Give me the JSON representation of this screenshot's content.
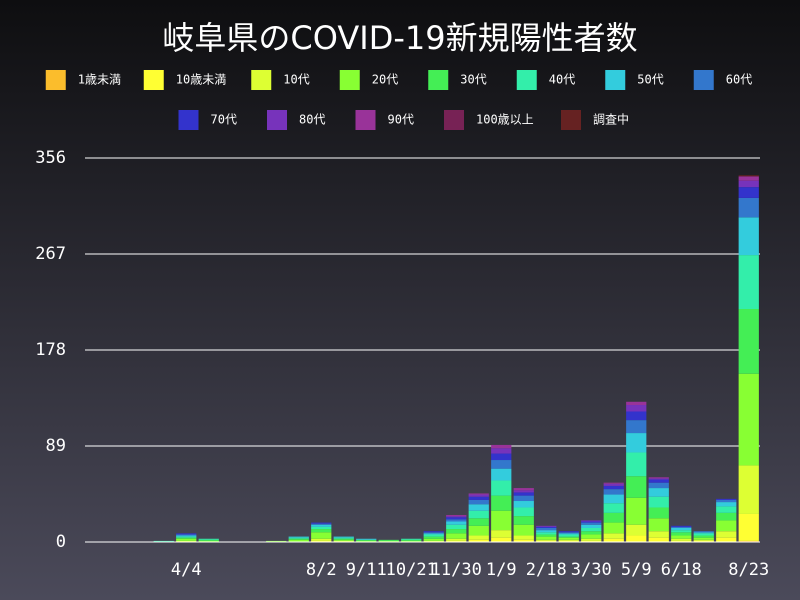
{
  "chart_data": {
    "type": "stacked-bar",
    "title": "岐阜県のCOVID-19新規陽性者数",
    "categories": [
      null,
      null,
      null,
      null,
      "4/4",
      null,
      null,
      null,
      null,
      null,
      "8/2",
      null,
      "9/11",
      null,
      "10/21",
      null,
      "11/30",
      null,
      "1/9",
      null,
      "2/18",
      null,
      "3/30",
      null,
      "5/9",
      null,
      "6/18",
      null,
      null,
      "8/23"
    ],
    "ylim": [
      0,
      356
    ],
    "yticks": [
      0,
      89,
      178,
      267,
      356
    ],
    "grid": true,
    "series": [
      {
        "name": "1歳未満",
        "color": "#fbbd2c",
        "values": [
          0,
          0,
          0,
          0,
          0,
          0,
          0,
          0,
          0,
          0,
          0,
          0,
          0,
          0,
          0,
          0,
          0,
          0,
          0,
          0,
          0,
          0,
          0,
          0,
          0,
          0,
          0,
          0,
          0,
          1
        ]
      },
      {
        "name": "10歳未満",
        "color": "#ffff33",
        "values": [
          0,
          0,
          0,
          0,
          0,
          0,
          0,
          0,
          0,
          0,
          1,
          0,
          0,
          0,
          0,
          0,
          1,
          2,
          4,
          2,
          1,
          1,
          1,
          3,
          6,
          4,
          1,
          1,
          4,
          25
        ]
      },
      {
        "name": "10代",
        "color": "#ddff33",
        "values": [
          0,
          0,
          0,
          0,
          1,
          0,
          0,
          0,
          0,
          0,
          2,
          1,
          0,
          0,
          0,
          1,
          2,
          4,
          7,
          4,
          1,
          1,
          2,
          5,
          10,
          6,
          2,
          1,
          6,
          45
        ]
      },
      {
        "name": "20代",
        "color": "#88ff33",
        "values": [
          0,
          0,
          0,
          0,
          2,
          1,
          0,
          0,
          1,
          2,
          6,
          1,
          1,
          1,
          1,
          2,
          5,
          9,
          18,
          10,
          3,
          2,
          4,
          10,
          25,
          12,
          3,
          2,
          10,
          85
        ]
      },
      {
        "name": "30代",
        "color": "#44ee55",
        "values": [
          0,
          0,
          0,
          0,
          1,
          1,
          0,
          0,
          0,
          1,
          3,
          1,
          1,
          1,
          1,
          2,
          4,
          7,
          14,
          8,
          2,
          1,
          3,
          9,
          20,
          10,
          3,
          2,
          7,
          60
        ]
      },
      {
        "name": "40代",
        "color": "#33eeaa",
        "values": [
          0,
          0,
          0,
          1,
          1,
          1,
          0,
          0,
          0,
          1,
          2,
          1,
          0,
          0,
          1,
          2,
          4,
          7,
          14,
          8,
          2,
          2,
          3,
          9,
          22,
          10,
          2,
          2,
          6,
          50
        ]
      },
      {
        "name": "50代",
        "color": "#33ccdd",
        "values": [
          0,
          0,
          0,
          0,
          1,
          0,
          0,
          0,
          0,
          1,
          2,
          1,
          1,
          0,
          0,
          1,
          3,
          6,
          11,
          6,
          2,
          1,
          3,
          8,
          18,
          8,
          2,
          1,
          4,
          35
        ]
      },
      {
        "name": "60代",
        "color": "#3377cc",
        "values": [
          0,
          0,
          0,
          0,
          1,
          0,
          0,
          0,
          0,
          0,
          1,
          0,
          0,
          0,
          0,
          1,
          2,
          4,
          8,
          5,
          2,
          1,
          2,
          5,
          12,
          5,
          1,
          1,
          2,
          18
        ]
      },
      {
        "name": "70代",
        "color": "#3333cc",
        "values": [
          0,
          0,
          0,
          0,
          1,
          0,
          0,
          0,
          0,
          0,
          1,
          0,
          0,
          0,
          0,
          1,
          2,
          3,
          6,
          3,
          1,
          1,
          1,
          3,
          8,
          3,
          1,
          0,
          1,
          10
        ]
      },
      {
        "name": "80代",
        "color": "#7733bb",
        "values": [
          0,
          0,
          0,
          0,
          0,
          0,
          0,
          0,
          0,
          0,
          0,
          0,
          0,
          0,
          0,
          0,
          1,
          2,
          5,
          2,
          1,
          0,
          1,
          2,
          6,
          1,
          0,
          0,
          0,
          6
        ]
      },
      {
        "name": "90代",
        "color": "#993399",
        "values": [
          0,
          0,
          0,
          0,
          0,
          0,
          0,
          0,
          0,
          0,
          0,
          0,
          0,
          0,
          0,
          0,
          1,
          1,
          3,
          2,
          0,
          0,
          0,
          1,
          3,
          1,
          0,
          0,
          0,
          4
        ]
      },
      {
        "name": "100歳以上",
        "color": "#772255",
        "values": [
          0,
          0,
          0,
          0,
          0,
          0,
          0,
          0,
          0,
          0,
          0,
          0,
          0,
          0,
          0,
          0,
          0,
          0,
          0,
          0,
          0,
          0,
          0,
          0,
          0,
          0,
          0,
          0,
          0,
          0
        ]
      },
      {
        "name": "調査中",
        "color": "#662222",
        "values": [
          0,
          0,
          0,
          0,
          0,
          0,
          0,
          0,
          0,
          0,
          0,
          0,
          0,
          0,
          0,
          0,
          0,
          0,
          0,
          0,
          0,
          0,
          0,
          0,
          0,
          0,
          0,
          0,
          0,
          1
        ]
      }
    ]
  }
}
